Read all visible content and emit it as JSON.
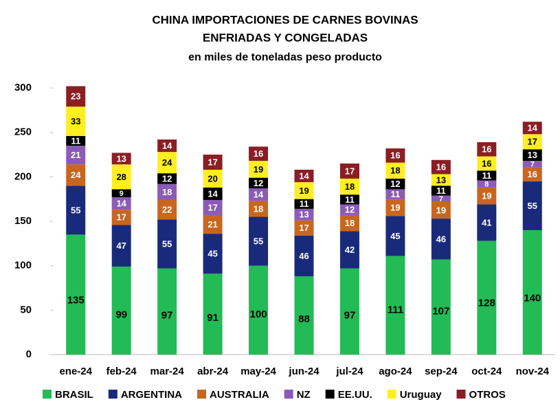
{
  "chart_data": {
    "type": "stacked-bar",
    "title": "CHINA IMPORTACIONES DE CARNES BOVINAS",
    "subtitle": "ENFRIADAS Y CONGELADAS",
    "unit_note": "en miles de toneladas peso producto",
    "categories": [
      "ene-24",
      "feb-24",
      "mar-24",
      "abr-24",
      "may-24",
      "jun-24",
      "jul-24",
      "ago-24",
      "sep-24",
      "oct-24",
      "nov-24"
    ],
    "series": [
      {
        "name": "BRASIL",
        "color": "#22bb55",
        "label_color": "#000000",
        "values": [
          135,
          99,
          97,
          91,
          100,
          88,
          97,
          111,
          107,
          128,
          140
        ]
      },
      {
        "name": "ARGENTINA",
        "color": "#1a2a7a",
        "label_color": "#ffffff",
        "values": [
          55,
          47,
          55,
          45,
          55,
          46,
          42,
          45,
          46,
          41,
          55
        ]
      },
      {
        "name": "AUSTRALIA",
        "color": "#c8661f",
        "label_color": "#ffffff",
        "values": [
          24,
          17,
          22,
          21,
          18,
          17,
          18,
          19,
          19,
          19,
          16
        ]
      },
      {
        "name": "NZ",
        "color": "#8a5cb5",
        "label_color": "#ffffff",
        "values": [
          21,
          14,
          18,
          17,
          14,
          13,
          12,
          11,
          7,
          8,
          7
        ]
      },
      {
        "name": "EE.UU.",
        "color": "#000000",
        "label_color": "#ffffff",
        "values": [
          11,
          9,
          12,
          14,
          12,
          11,
          11,
          12,
          11,
          11,
          13
        ]
      },
      {
        "name": "Uruguay",
        "color": "#ffee22",
        "label_color": "#000000",
        "values": [
          33,
          28,
          24,
          20,
          19,
          19,
          18,
          18,
          13,
          16,
          17
        ]
      },
      {
        "name": "OTROS",
        "color": "#8b1e24",
        "label_color": "#ffffff",
        "values": [
          23,
          13,
          14,
          17,
          16,
          14,
          17,
          16,
          16,
          16,
          14
        ]
      }
    ],
    "ylim": [
      0,
      300
    ],
    "yticks": [
      0,
      50,
      100,
      150,
      200,
      250,
      300
    ],
    "legend": "bottom"
  }
}
